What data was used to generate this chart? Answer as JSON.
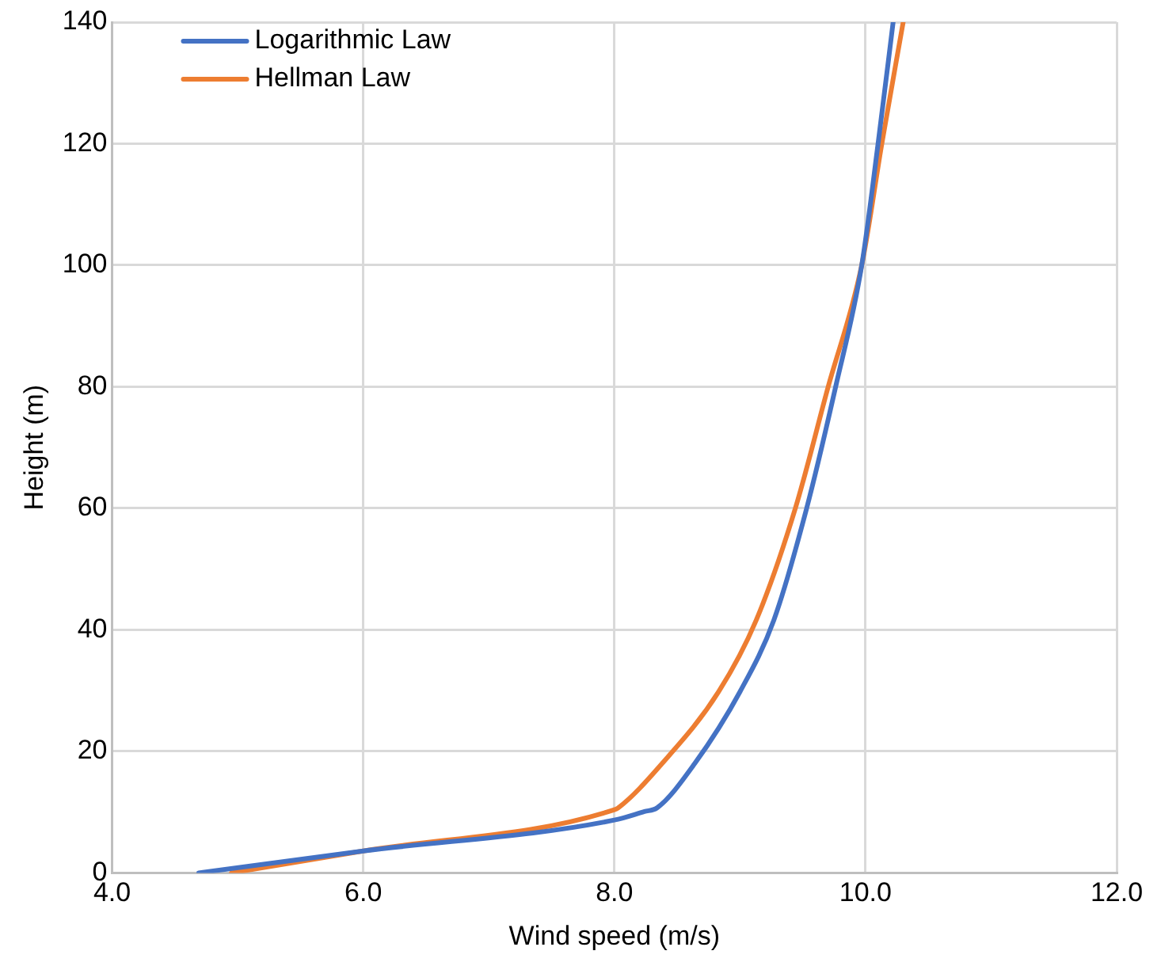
{
  "chart_data": {
    "type": "line",
    "xlabel": "Wind speed (m/s)",
    "ylabel": "Height (m)",
    "xlim": [
      4,
      12
    ],
    "xticks": [
      {
        "value": 4,
        "label": "4.0"
      },
      {
        "value": 6,
        "label": "6.0"
      },
      {
        "value": 8,
        "label": "8.0"
      },
      {
        "value": 10,
        "label": "10.0"
      },
      {
        "value": 12,
        "label": "12.0"
      }
    ],
    "ylim": [
      0,
      140
    ],
    "yticks": [
      0,
      20,
      40,
      60,
      80,
      100,
      120,
      140
    ],
    "grid": true,
    "legend": "top left",
    "marker": "none",
    "line_style": "solid",
    "series": [
      {
        "name": "Logarithmic Law",
        "color": "#4472c4",
        "x": [
          4.69,
          6.0,
          8.0,
          8.24,
          8.34,
          8.64,
          9.0,
          9.27,
          9.53,
          9.76,
          9.97,
          10.1,
          10.22
        ],
        "values": [
          0,
          3.6,
          8.7,
          10.1,
          10.7,
          18,
          29.8,
          41.6,
          59.9,
          79.8,
          100,
          120,
          140
        ]
      },
      {
        "name": "Hellman Law",
        "color": "#ed7d31",
        "x": [
          4.95,
          6.0,
          8.0,
          8.03,
          8.38,
          8.83,
          9.13,
          9.44,
          9.7,
          9.97,
          10.13,
          10.3
        ],
        "values": [
          0,
          3.6,
          10.4,
          10.7,
          18,
          29.8,
          41.6,
          59.9,
          79.8,
          100,
          120,
          140
        ]
      }
    ]
  }
}
